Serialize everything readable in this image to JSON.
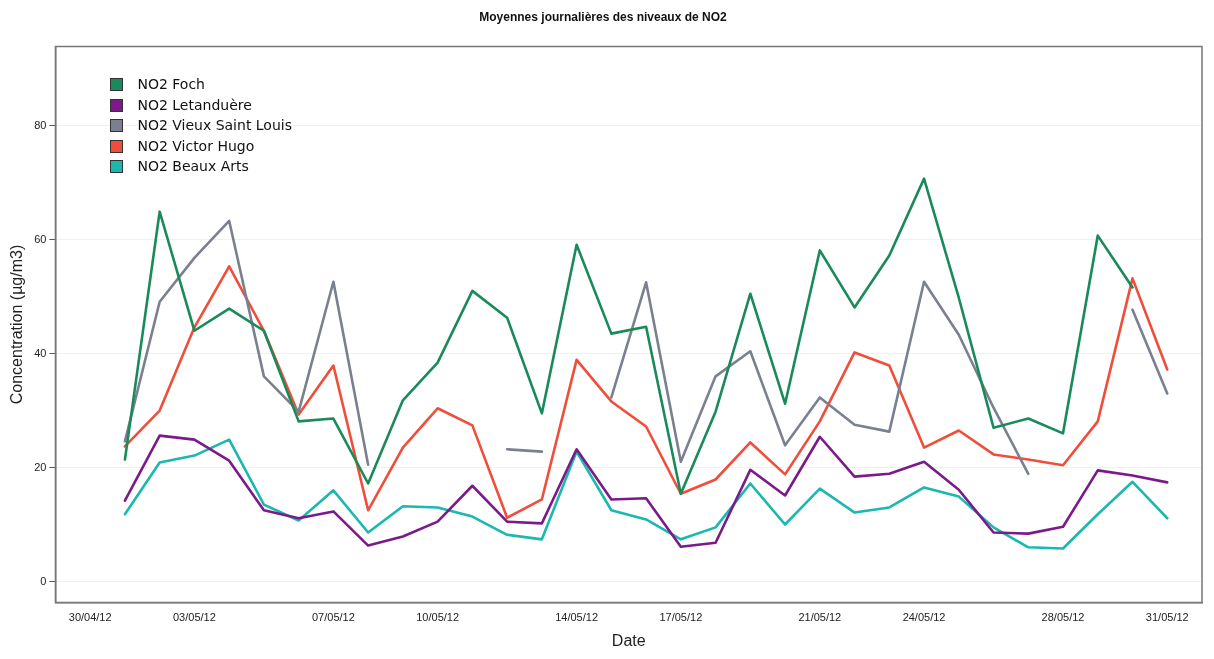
{
  "chart_data": {
    "type": "line",
    "title": "Moyennes journalières des niveaux de NO2",
    "xlabel": "Date",
    "ylabel": "Concentration (µg/m3)",
    "x": [
      "--05-01",
      "--05-02",
      "--05-03",
      "--05-04",
      "--05-05",
      "--05-06",
      "--05-07",
      "--05-08",
      "--05-09",
      "--05-10",
      "--05-11",
      "--05-12",
      "--05-13",
      "--05-14",
      "--05-15",
      "--05-16",
      "--05-17",
      "--05-18",
      "--05-19",
      "--05-20",
      "--05-21",
      "--05-22",
      "--05-23",
      "--05-24",
      "--05-25",
      "--05-26",
      "--05-27",
      "--05-28",
      "--05-29",
      "--05-30",
      "--05-31"
    ],
    "series": [
      {
        "name": "NO2 Foch",
        "color": "#1a8a5a",
        "values": [
          21.4,
          64.9,
          44.0,
          47.9,
          44.0,
          28.1,
          28.6,
          17.2,
          31.8,
          38.4,
          51.0,
          46.3,
          29.5,
          59.1,
          43.5,
          44.7,
          15.4,
          29.8,
          50.5,
          31.2,
          58.1,
          48.1,
          57.2,
          70.7,
          49.8,
          27.0,
          28.6,
          26.0,
          60.7,
          51.6,
          null
        ]
      },
      {
        "name": "NO2 Letanduère",
        "color": "#7b1a8a",
        "values": [
          14.2,
          25.6,
          24.9,
          21.2,
          12.5,
          11.1,
          12.3,
          6.3,
          7.9,
          10.5,
          16.8,
          10.5,
          10.2,
          23.2,
          14.4,
          14.6,
          6.1,
          6.8,
          19.6,
          15.1,
          25.4,
          18.4,
          18.9,
          21.0,
          16.1,
          8.6,
          8.4,
          9.6,
          19.5,
          18.6,
          17.4
        ]
      },
      {
        "name": "NO2 Vieux Saint Louis",
        "color": "#7a8090",
        "values": [
          24.6,
          49.1,
          56.8,
          63.3,
          36.0,
          29.8,
          52.6,
          20.5,
          null,
          null,
          null,
          23.2,
          22.8,
          null,
          32.3,
          52.5,
          21.0,
          36.0,
          40.4,
          23.9,
          32.3,
          27.5,
          26.3,
          52.6,
          43.3,
          30.5,
          18.9,
          null,
          null,
          47.7,
          33.0
        ]
      },
      {
        "name": "NO2 Victor Hugo",
        "color": "#f04e3a",
        "values": [
          23.7,
          30.0,
          44.6,
          55.3,
          44.0,
          29.3,
          37.9,
          12.5,
          23.5,
          30.4,
          27.4,
          11.2,
          14.4,
          38.9,
          31.6,
          27.2,
          15.4,
          17.9,
          24.4,
          18.8,
          28.1,
          40.2,
          37.9,
          23.5,
          26.5,
          22.3,
          21.4,
          20.4,
          28.1,
          53.2,
          37.2
        ]
      },
      {
        "name": "NO2 Beaux Arts",
        "color": "#1bb8b0",
        "values": [
          11.8,
          20.9,
          22.1,
          24.9,
          13.5,
          10.7,
          16.0,
          8.6,
          13.2,
          13.0,
          11.4,
          8.2,
          7.4,
          22.8,
          12.5,
          10.9,
          7.4,
          9.5,
          17.2,
          10.0,
          16.3,
          12.1,
          13.0,
          16.5,
          14.9,
          9.5,
          6.0,
          5.8,
          11.8,
          17.5,
          11.1
        ]
      }
    ],
    "xlim": [
      "--04-29",
      "--06-01"
    ],
    "xticks": [
      {
        "value": "--04-30",
        "label": "30/04/12"
      },
      {
        "value": "--05-03",
        "label": "03/05/12"
      },
      {
        "value": "--05-07",
        "label": "07/05/12"
      },
      {
        "value": "--05-10",
        "label": "10/05/12"
      },
      {
        "value": "--05-14",
        "label": "14/05/12"
      },
      {
        "value": "--05-17",
        "label": "17/05/12"
      },
      {
        "value": "--05-21",
        "label": "21/05/12"
      },
      {
        "value": "--05-24",
        "label": "24/05/12"
      },
      {
        "value": "--05-28",
        "label": "28/05/12"
      },
      {
        "value": "--05-31",
        "label": "31/05/12"
      }
    ],
    "ylim": [
      -3.7,
      93.9
    ],
    "yticks": [
      0,
      20,
      40,
      60,
      80
    ],
    "grid": "y",
    "legend": "top left",
    "marker": "none",
    "line_style": "solid"
  }
}
